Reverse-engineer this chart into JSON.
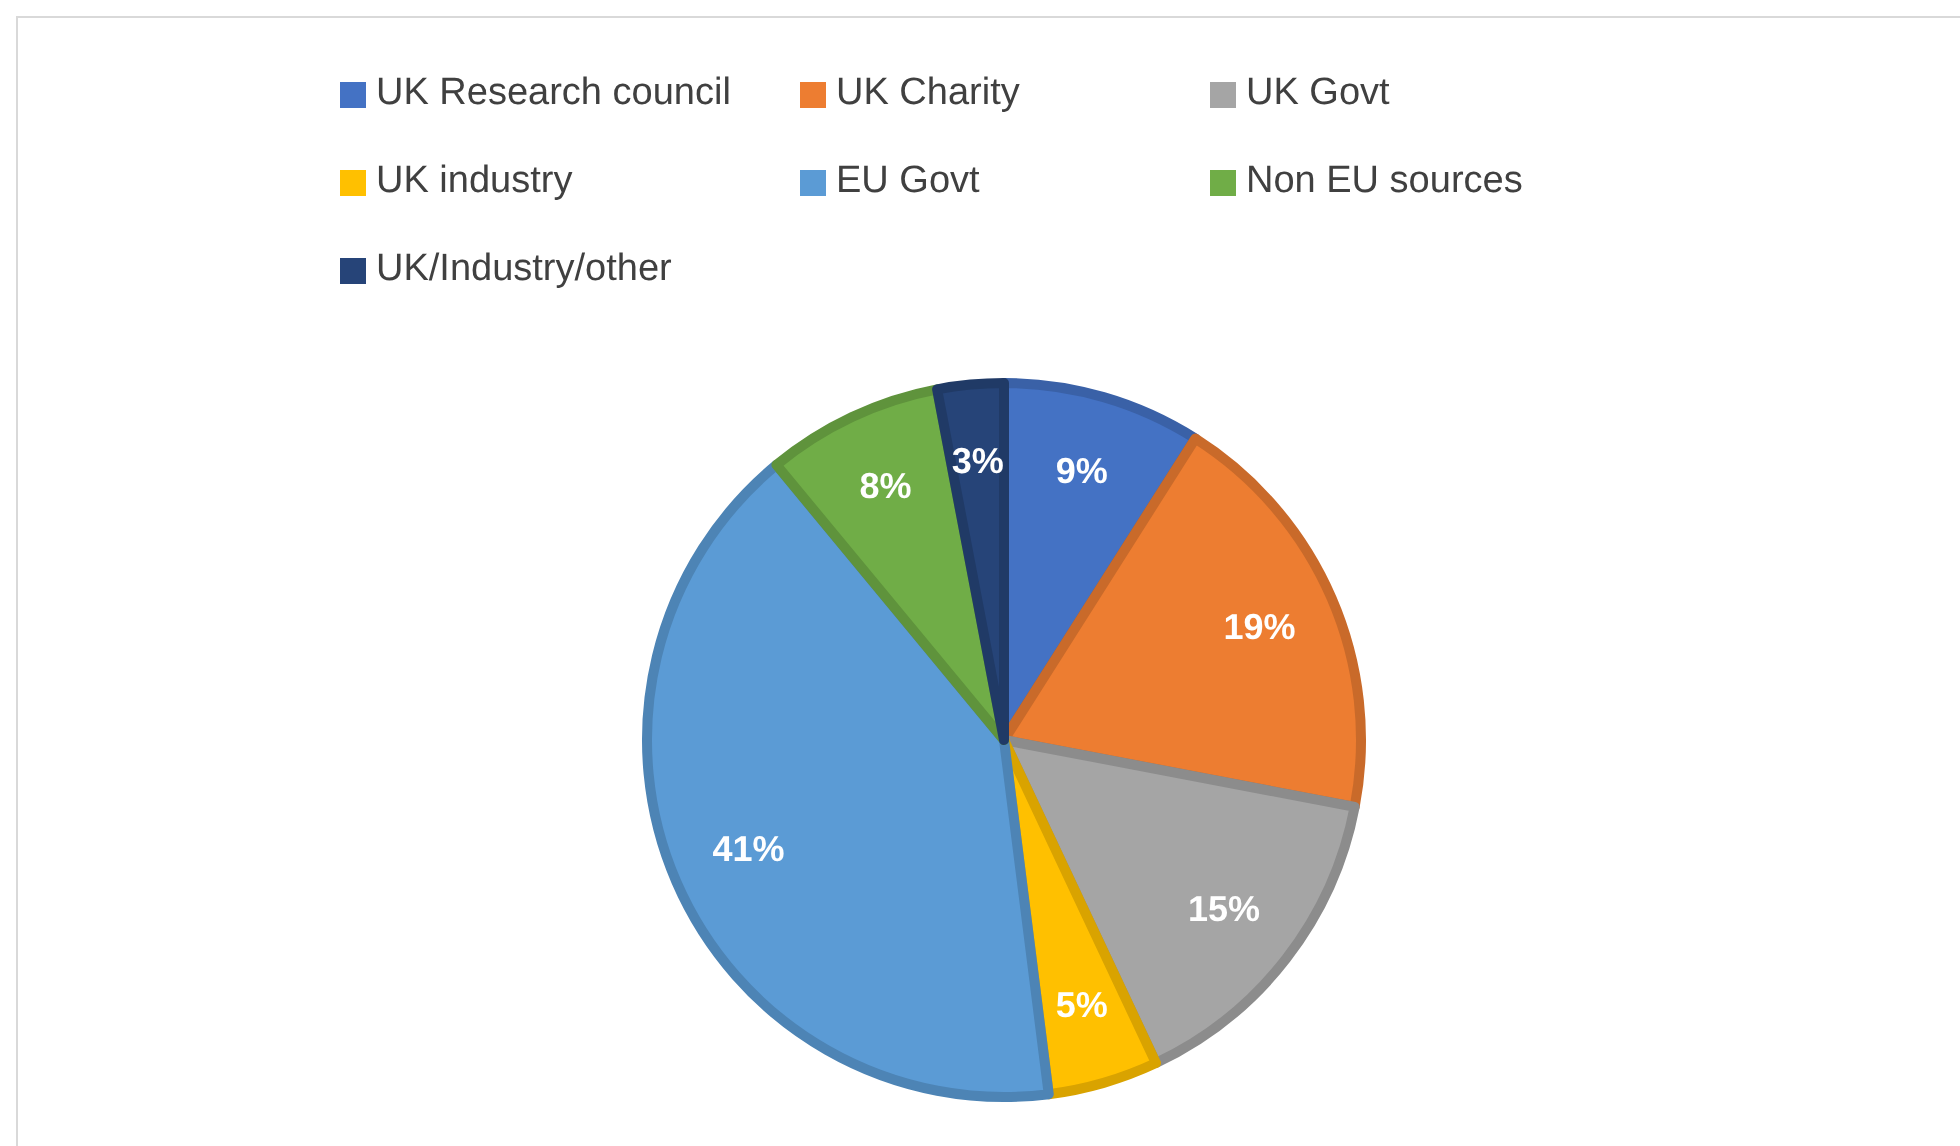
{
  "chart_data": {
    "type": "pie",
    "categories": [
      "UK Research council",
      "UK Charity",
      "UK Govt",
      "UK industry",
      "EU Govt",
      "Non EU sources",
      "UK/Industry/other"
    ],
    "values": [
      9,
      19,
      15,
      5,
      41,
      8,
      3
    ],
    "colors": [
      "#4472c4",
      "#ed7d31",
      "#a5a5a5",
      "#ffc000",
      "#5b9bd5",
      "#70ad47",
      "#264478"
    ],
    "value_labels": [
      "9%",
      "19%",
      "15%",
      "5%",
      "41%",
      "8%",
      "3%"
    ],
    "legend": "top"
  }
}
